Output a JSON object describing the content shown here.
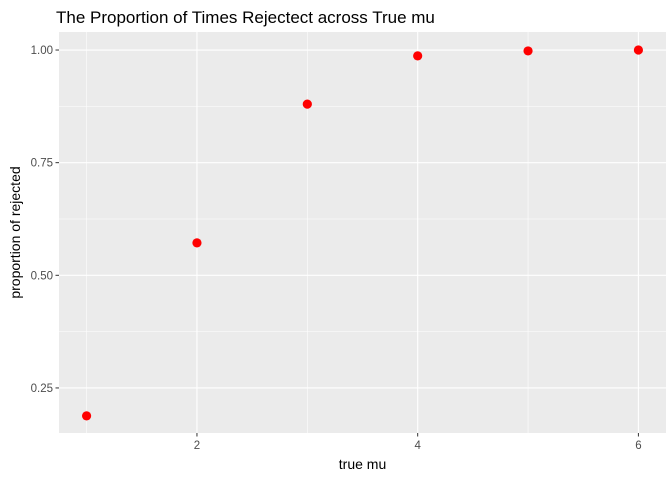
{
  "chart_data": {
    "type": "scatter",
    "title": "The Proportion of Times Rejectect across True mu",
    "xlabel": "true mu",
    "ylabel": "proportion of rejected",
    "xlim": [
      0.75,
      6.25
    ],
    "ylim": [
      0.15,
      1.04
    ],
    "x_ticks": [
      2,
      4,
      6
    ],
    "x_tick_labels": [
      "2",
      "4",
      "6"
    ],
    "y_ticks": [
      0.25,
      0.5,
      0.75,
      1.0
    ],
    "y_tick_labels": [
      "0.25",
      "0.50",
      "0.75",
      "1.00"
    ],
    "grid": true,
    "series": [
      {
        "color": "#ff0000",
        "points": [
          {
            "x": 1,
            "y": 0.188
          },
          {
            "x": 2,
            "y": 0.572
          },
          {
            "x": 3,
            "y": 0.88
          },
          {
            "x": 4,
            "y": 0.987
          },
          {
            "x": 5,
            "y": 0.998
          },
          {
            "x": 6,
            "y": 1.0
          }
        ]
      }
    ],
    "panel_background": "#ebebeb",
    "grid_color": "#ffffff"
  }
}
